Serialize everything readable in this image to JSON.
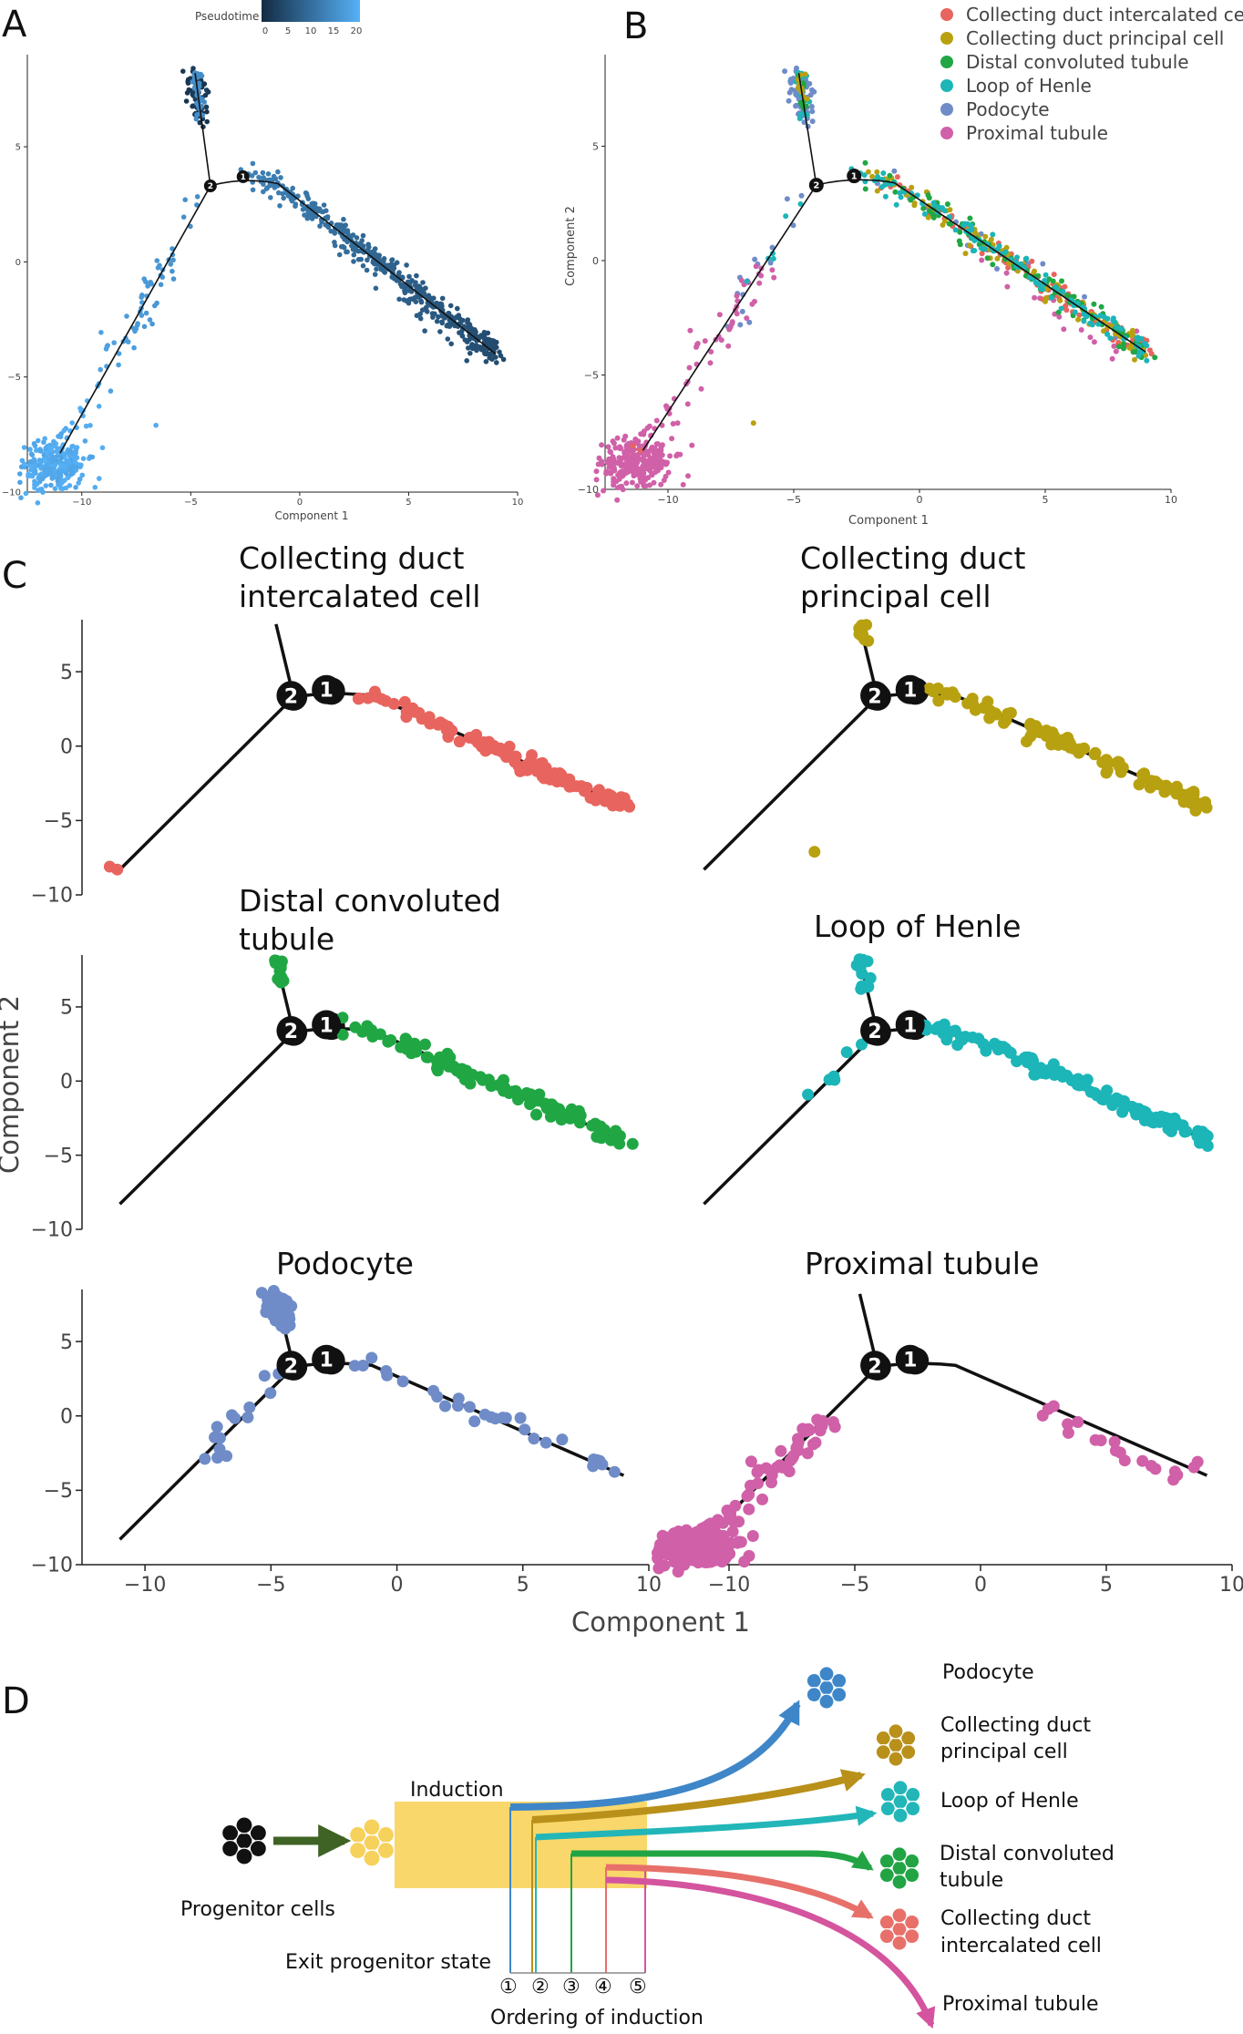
{
  "panel_labels": {
    "a": "A",
    "b": "B",
    "c": "C",
    "d": "D"
  },
  "colors": {
    "Collecting duct intercalated cell": "#e8645e",
    "Collecting duct principal cell": "#b8a110",
    "Distal convoluted tubule": "#20a744",
    "Loop of Henle": "#1cb5b8",
    "Podocyte": "#6f8cc8",
    "Proximal tubule": "#d060a8"
  },
  "chart_data": [
    {
      "id": "A",
      "type": "scatter",
      "xlabel": "Component 1",
      "ylabel": "",
      "xlim": [
        -12.5,
        10
      ],
      "ylim": [
        -10,
        9
      ],
      "xticks": [
        -10,
        -5,
        0,
        5,
        10
      ],
      "yticks": [
        -10,
        -5,
        0,
        5
      ],
      "legend": {
        "title": "Pseudotime",
        "ticks": [
          0,
          5,
          10,
          15,
          20
        ],
        "placement": "top"
      },
      "nodes": [
        {
          "label": "1",
          "x": -2.6,
          "y": 3.7
        },
        {
          "label": "2",
          "x": -4.1,
          "y": 3.3
        }
      ],
      "trajectory": {
        "trunk": [
          [
            -11,
            -8.3
          ],
          [
            -4.1,
            3.3
          ]
        ],
        "branch_up": [
          [
            -4.1,
            3.3
          ],
          [
            -4.8,
            8.2
          ]
        ],
        "branch_right": [
          [
            -4.1,
            3.3
          ],
          [
            -2.6,
            3.7
          ],
          [
            -1,
            3.4
          ],
          [
            3,
            1
          ],
          [
            9,
            -4
          ]
        ]
      }
    },
    {
      "id": "B",
      "type": "scatter",
      "xlabel": "Component 1",
      "ylabel": "Component 2",
      "xlim": [
        -12.5,
        10
      ],
      "ylim": [
        -10,
        9
      ],
      "xticks": [
        -10,
        -5,
        0,
        5,
        10
      ],
      "yticks": [
        -10,
        -5,
        0,
        5
      ],
      "legend": {
        "placement": "top-right",
        "entries": [
          "Collecting duct intercalated cell",
          "Collecting duct principal cell",
          "Distal convoluted tubule",
          "Loop of Henle",
          "Podocyte",
          "Proximal tubule"
        ]
      },
      "nodes": [
        {
          "label": "1",
          "x": -2.6,
          "y": 3.7
        },
        {
          "label": "2",
          "x": -4.1,
          "y": 3.3
        }
      ]
    },
    {
      "id": "C",
      "type": "scatter",
      "xlabel": "Component 1",
      "ylabel": "Component 2",
      "xlim": [
        -12.5,
        10
      ],
      "ylim": [
        -10,
        8.5
      ],
      "xticks": [
        -10,
        -5,
        0,
        5,
        10
      ],
      "yticks": [
        -10,
        -5,
        0,
        5
      ],
      "facets": [
        {
          "title": "Collecting duct intercalated cell",
          "col": 0,
          "row": 0
        },
        {
          "title": "Collecting duct principal cell",
          "col": 1,
          "row": 0
        },
        {
          "title": "Distal convoluted tubule",
          "col": 0,
          "row": 1
        },
        {
          "title": "Loop of Henle",
          "col": 1,
          "row": 1
        },
        {
          "title": "Podocyte",
          "col": 0,
          "row": 2
        },
        {
          "title": "Proximal tubule",
          "col": 1,
          "row": 2
        }
      ],
      "nodes": [
        {
          "label": "1",
          "x": -2.8,
          "y": 3.8
        },
        {
          "label": "2",
          "x": -4.2,
          "y": 3.4
        }
      ]
    }
  ],
  "titles_c": {
    "cdi_1": "Collecting duct",
    "cdi_2": "intercalated cell",
    "cdp_1": "Collecting duct",
    "cdp_2": "principal cell",
    "dct_1": "Distal convoluted",
    "dct_2": "tubule",
    "loh": "Loop of Henle",
    "pod": "Podocyte",
    "pt": "Proximal tubule"
  },
  "axis_c": {
    "x": "Component 1",
    "y": "Component 2"
  },
  "pseudotime_title": "Pseudotime",
  "diagram": {
    "progenitor": "Progenitor cells",
    "induction": "Induction",
    "exit": "Exit progenitor state",
    "ordering": "Ordering of induction",
    "order_marks": [
      "①",
      "②",
      "③",
      "④",
      "⑤"
    ],
    "fates": {
      "pod": "Podocyte",
      "cdp_1": "Collecting duct",
      "cdp_2": "principal cell",
      "loh": "Loop of Henle",
      "dct_1": "Distal convoluted",
      "dct_2": "tubule",
      "cdi_1": "Collecting duct",
      "cdi_2": "intercalated cell",
      "pt": "Proximal tubule"
    },
    "arrow_colors": {
      "progenitor": "#3e6324",
      "pod": "#3e86c8",
      "cdp": "#b8901a",
      "loh": "#22b6b8",
      "dct": "#22a444",
      "cdi": "#e8706a",
      "pt": "#d4549e"
    },
    "cell_colors": {
      "progenitor": "#111111",
      "exit": "#f6d15c",
      "box": "#f9d76a"
    }
  }
}
